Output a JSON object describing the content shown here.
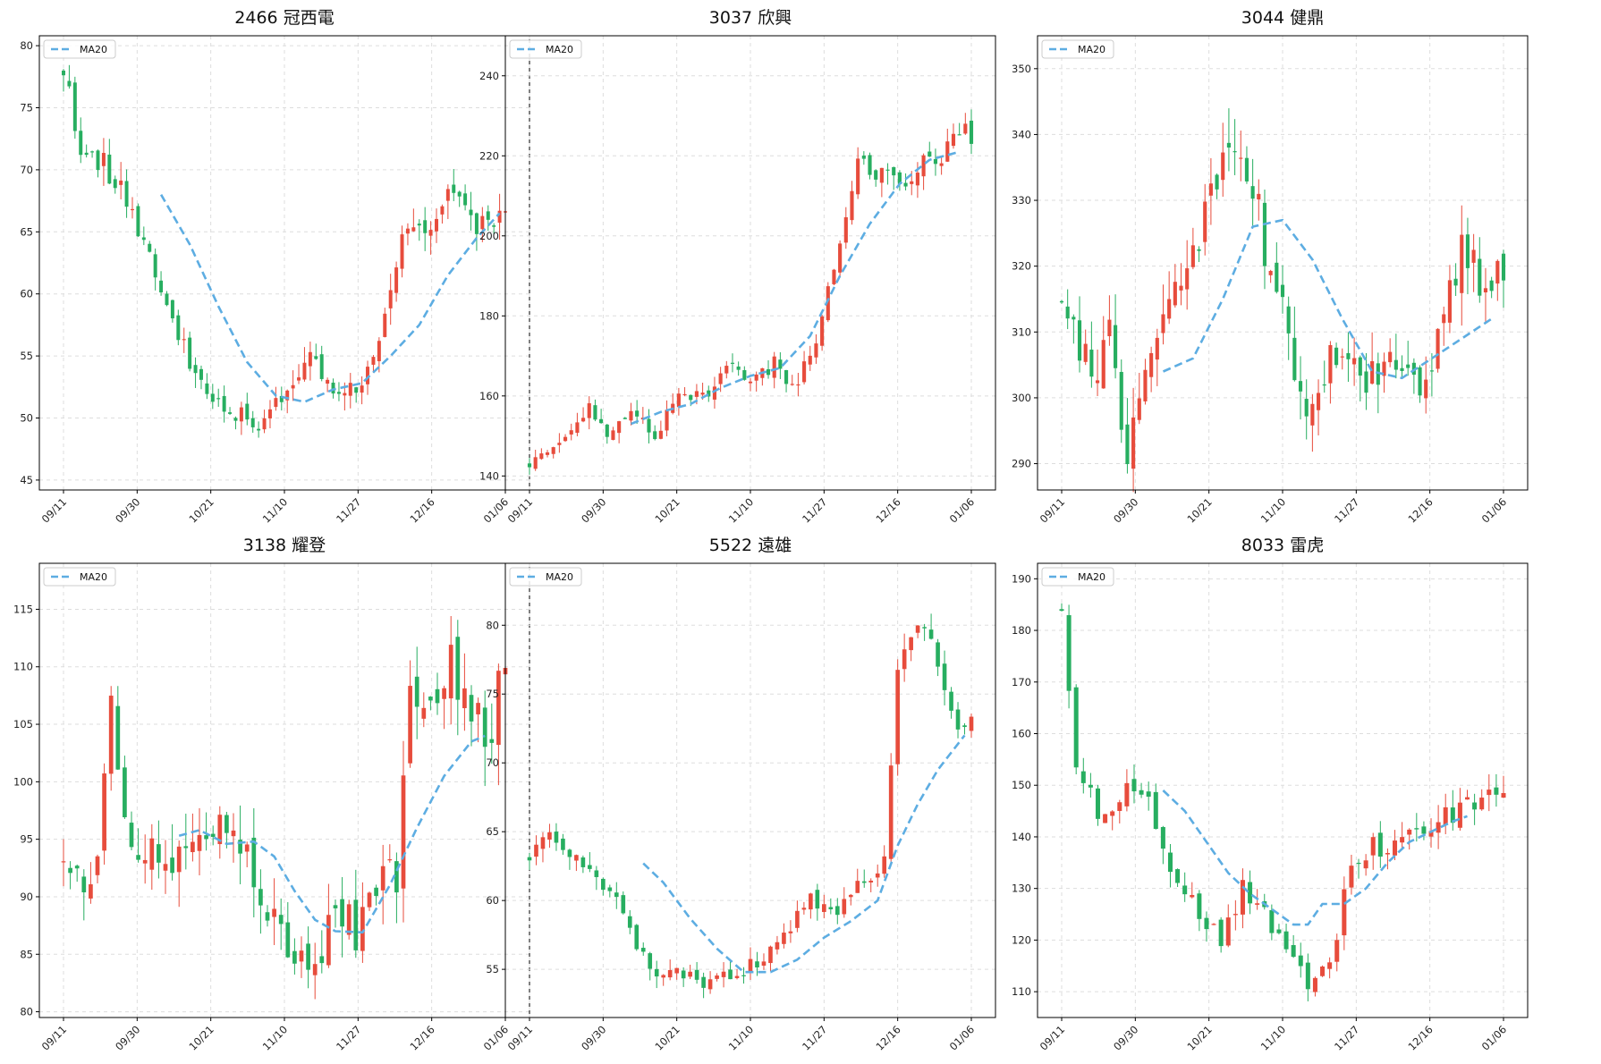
{
  "colors": {
    "up": "#e74c3c",
    "down": "#27ae60",
    "ma": "#5dade2",
    "grid": "#dddddd",
    "frame": "#000000"
  },
  "chart_data": [
    {
      "type": "candlestick",
      "title": "2466 冠西電",
      "legend": "MA20",
      "legend_position": "top-left",
      "ylim": [
        44.2,
        80.8
      ],
      "yticks": [
        "45",
        "50",
        "55",
        "60",
        "65",
        "70",
        "75",
        "80"
      ],
      "xticks": [
        "09/11",
        "09/30",
        "10/21",
        "11/10",
        "11/27",
        "12/16",
        "01/06"
      ],
      "anchors": [
        [
          0,
          78.2
        ],
        [
          3,
          71.5
        ],
        [
          7,
          70.5
        ],
        [
          12,
          67.0
        ],
        [
          15,
          62.5
        ],
        [
          20,
          56.5
        ],
        [
          25,
          52.0
        ],
        [
          30,
          50.5
        ],
        [
          34,
          49.5
        ],
        [
          39,
          52.5
        ],
        [
          43,
          55.3
        ],
        [
          47,
          52.5
        ],
        [
          52,
          52.5
        ],
        [
          55,
          55.5
        ],
        [
          59,
          64.5
        ],
        [
          64,
          66.0
        ],
        [
          68,
          68.0
        ],
        [
          72,
          65.0
        ],
        [
          77,
          66.8
        ]
      ],
      "ma": [
        [
          17,
          68.0
        ],
        [
          22,
          64.0
        ],
        [
          27,
          59.0
        ],
        [
          32,
          54.5
        ],
        [
          37,
          51.8
        ],
        [
          42,
          51.3
        ],
        [
          47,
          52.3
        ],
        [
          52,
          52.8
        ],
        [
          57,
          55.0
        ],
        [
          62,
          57.5
        ],
        [
          67,
          61.5
        ],
        [
          72,
          64.5
        ],
        [
          76,
          66.5
        ]
      ],
      "seed": 11,
      "vol": 0.018
    },
    {
      "type": "candlestick",
      "title": "3037 欣興",
      "legend": "MA20",
      "legend_position": "top-left",
      "ylim": [
        136.5,
        250.0
      ],
      "yticks": [
        "140",
        "160",
        "180",
        "200",
        "220",
        "240"
      ],
      "xticks": [
        "09/11",
        "09/30",
        "10/21",
        "11/10",
        "11/27",
        "12/16",
        "01/06"
      ],
      "anchors": [
        [
          0,
          143
        ],
        [
          3,
          145
        ],
        [
          6,
          150
        ],
        [
          10,
          158
        ],
        [
          13,
          150
        ],
        [
          17,
          156
        ],
        [
          21,
          150
        ],
        [
          25,
          160
        ],
        [
          30,
          160
        ],
        [
          34,
          168
        ],
        [
          37,
          163
        ],
        [
          41,
          168
        ],
        [
          44,
          162
        ],
        [
          48,
          172
        ],
        [
          52,
          200
        ],
        [
          55,
          220
        ],
        [
          59,
          215
        ],
        [
          62,
          212
        ],
        [
          65,
          218
        ],
        [
          69,
          220
        ],
        [
          72,
          226
        ],
        [
          74,
          225
        ]
      ],
      "ma": [
        [
          17,
          153
        ],
        [
          22,
          156
        ],
        [
          27,
          158
        ],
        [
          32,
          162
        ],
        [
          37,
          165
        ],
        [
          42,
          167
        ],
        [
          47,
          175
        ],
        [
          52,
          190
        ],
        [
          57,
          203
        ],
        [
          62,
          213
        ],
        [
          67,
          219
        ],
        [
          72,
          221
        ]
      ],
      "seed": 23,
      "vol": 0.014
    },
    {
      "type": "candlestick",
      "title": "3044 健鼎",
      "legend": "MA20",
      "legend_position": "top-left",
      "ylim": [
        286,
        355
      ],
      "yticks": [
        "290",
        "300",
        "310",
        "320",
        "330",
        "340",
        "350"
      ],
      "xticks": [
        "09/11",
        "09/30",
        "10/21",
        "11/10",
        "11/27",
        "12/16",
        "01/06"
      ],
      "anchors": [
        [
          0,
          316
        ],
        [
          3,
          308
        ],
        [
          6,
          302
        ],
        [
          8,
          310
        ],
        [
          11,
          292
        ],
        [
          14,
          305
        ],
        [
          17,
          310
        ],
        [
          21,
          320
        ],
        [
          25,
          330
        ],
        [
          28,
          340
        ],
        [
          32,
          333
        ],
        [
          35,
          318
        ],
        [
          38,
          310
        ],
        [
          41,
          296
        ],
        [
          44,
          304
        ],
        [
          47,
          308
        ],
        [
          51,
          302
        ],
        [
          55,
          305
        ],
        [
          58,
          304
        ],
        [
          61,
          302
        ],
        [
          64,
          314
        ],
        [
          67,
          323
        ],
        [
          71,
          316
        ],
        [
          74,
          320
        ]
      ],
      "ma": [
        [
          17,
          304
        ],
        [
          22,
          306
        ],
        [
          27,
          315
        ],
        [
          32,
          326
        ],
        [
          37,
          327
        ],
        [
          42,
          321
        ],
        [
          47,
          312
        ],
        [
          52,
          304
        ],
        [
          57,
          303
        ],
        [
          62,
          306
        ],
        [
          67,
          309
        ],
        [
          72,
          312
        ]
      ],
      "seed": 37,
      "vol": 0.012
    },
    {
      "type": "candlestick",
      "title": "3138 耀登",
      "legend": "MA20",
      "legend_position": "top-left",
      "ylim": [
        79.5,
        119.0
      ],
      "yticks": [
        "80",
        "85",
        "90",
        "95",
        "100",
        "105",
        "110",
        "115"
      ],
      "xticks": [
        "09/11",
        "09/30",
        "10/21",
        "11/10",
        "11/27",
        "12/16",
        "01/06"
      ],
      "anchors": [
        [
          0,
          94
        ],
        [
          3,
          91
        ],
        [
          5,
          94
        ],
        [
          7,
          106
        ],
        [
          9,
          96
        ],
        [
          12,
          94
        ],
        [
          15,
          93
        ],
        [
          18,
          94
        ],
        [
          21,
          95
        ],
        [
          25,
          97
        ],
        [
          28,
          92
        ],
        [
          31,
          88
        ],
        [
          34,
          84
        ],
        [
          37,
          84
        ],
        [
          40,
          89
        ],
        [
          43,
          87
        ],
        [
          46,
          91
        ],
        [
          49,
          92
        ],
        [
          51,
          108
        ],
        [
          54,
          106
        ],
        [
          57,
          110
        ],
        [
          61,
          106
        ],
        [
          63,
          104
        ],
        [
          65,
          112
        ]
      ],
      "ma": [
        [
          17,
          95.3
        ],
        [
          20,
          95.8
        ],
        [
          24,
          94.6
        ],
        [
          28,
          94.8
        ],
        [
          31,
          93.5
        ],
        [
          34,
          90.5
        ],
        [
          37,
          88.0
        ],
        [
          40,
          87.0
        ],
        [
          44,
          86.9
        ],
        [
          48,
          91.0
        ],
        [
          52,
          96.0
        ],
        [
          56,
          100.5
        ],
        [
          60,
          103.5
        ],
        [
          62,
          104.0
        ]
      ],
      "seed": 53,
      "vol": 0.025
    },
    {
      "type": "candlestick",
      "title": "5522 遠雄",
      "legend": "MA20",
      "legend_position": "top-left",
      "ylim": [
        51.5,
        84.5
      ],
      "yticks": [
        "55",
        "60",
        "65",
        "70",
        "75",
        "80"
      ],
      "xticks": [
        "09/11",
        "09/30",
        "10/21",
        "11/10",
        "11/27",
        "12/16",
        "01/06"
      ],
      "anchors": [
        [
          0,
          63.2
        ],
        [
          3,
          65
        ],
        [
          6,
          63
        ],
        [
          10,
          62
        ],
        [
          14,
          59
        ],
        [
          18,
          55
        ],
        [
          22,
          55
        ],
        [
          26,
          54
        ],
        [
          30,
          54.5
        ],
        [
          34,
          55.5
        ],
        [
          38,
          57.5
        ],
        [
          42,
          60
        ],
        [
          46,
          59.5
        ],
        [
          50,
          61.5
        ],
        [
          53,
          63
        ],
        [
          55,
          77.5
        ],
        [
          58,
          80
        ],
        [
          61,
          77.5
        ],
        [
          64,
          72
        ],
        [
          66,
          74
        ]
      ],
      "ma": [
        [
          17,
          62.7
        ],
        [
          20,
          61.3
        ],
        [
          24,
          58.7
        ],
        [
          28,
          56.5
        ],
        [
          32,
          54.8
        ],
        [
          36,
          54.8
        ],
        [
          40,
          55.7
        ],
        [
          44,
          57.3
        ],
        [
          48,
          58.5
        ],
        [
          52,
          60.0
        ],
        [
          55,
          64.0
        ],
        [
          58,
          67.0
        ],
        [
          61,
          69.5
        ],
        [
          65,
          72.0
        ]
      ],
      "seed": 71,
      "vol": 0.012
    },
    {
      "type": "candlestick",
      "title": "8033 雷虎",
      "legend": "MA20",
      "legend_position": "top-left",
      "ylim": [
        105,
        193
      ],
      "yticks": [
        "110",
        "120",
        "130",
        "140",
        "150",
        "160",
        "170",
        "180",
        "190"
      ],
      "xticks": [
        "09/11",
        "09/30",
        "10/21",
        "11/10",
        "11/27",
        "12/16",
        "01/06"
      ],
      "anchors": [
        [
          0,
          185
        ],
        [
          2,
          155
        ],
        [
          5,
          145
        ],
        [
          8,
          148
        ],
        [
          11,
          150
        ],
        [
          15,
          135
        ],
        [
          19,
          125
        ],
        [
          22,
          120
        ],
        [
          25,
          130
        ],
        [
          28,
          125
        ],
        [
          31,
          118
        ],
        [
          34,
          112
        ],
        [
          37,
          115
        ],
        [
          40,
          135
        ],
        [
          43,
          138
        ],
        [
          46,
          138
        ],
        [
          49,
          142
        ],
        [
          52,
          143
        ],
        [
          55,
          145
        ],
        [
          58,
          147
        ],
        [
          61,
          150
        ]
      ],
      "ma": [
        [
          14,
          149
        ],
        [
          17,
          145
        ],
        [
          20,
          139
        ],
        [
          23,
          133
        ],
        [
          26,
          129
        ],
        [
          29,
          126
        ],
        [
          32,
          123
        ],
        [
          34,
          123
        ],
        [
          36,
          127
        ],
        [
          39,
          127
        ],
        [
          42,
          130
        ],
        [
          45,
          135
        ],
        [
          48,
          139
        ],
        [
          51,
          141
        ],
        [
          54,
          143
        ],
        [
          56,
          144
        ]
      ],
      "seed": 97,
      "vol": 0.018
    }
  ]
}
